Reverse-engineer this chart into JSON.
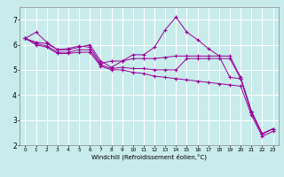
{
  "title": "",
  "xlabel": "Windchill (Refroidissement éolien,°C)",
  "ylabel": "",
  "background_color": "#c8ecec",
  "line_color": "#990099",
  "grid_color": "#aadddd",
  "xlim": [
    -0.5,
    23.5
  ],
  "ylim": [
    2,
    7.5
  ],
  "yticks": [
    2,
    3,
    4,
    5,
    6,
    7
  ],
  "xticks": [
    0,
    1,
    2,
    3,
    4,
    5,
    6,
    7,
    8,
    9,
    10,
    11,
    12,
    13,
    14,
    15,
    16,
    17,
    18,
    19,
    20,
    21,
    22,
    23
  ],
  "series": [
    {
      "x": [
        0,
        1,
        2,
        3,
        4,
        5,
        6,
        7,
        8,
        9,
        10,
        11,
        12,
        13,
        14,
        15,
        16,
        17,
        18,
        19,
        20,
        21,
        22,
        23
      ],
      "y": [
        6.25,
        6.5,
        6.1,
        5.8,
        5.8,
        5.9,
        6.0,
        5.35,
        5.1,
        5.35,
        5.6,
        5.6,
        5.9,
        6.6,
        7.1,
        6.5,
        6.2,
        5.85,
        5.55,
        5.55,
        4.7,
        3.35,
        2.45,
        2.65
      ]
    },
    {
      "x": [
        0,
        1,
        2,
        3,
        4,
        5,
        6,
        7,
        8,
        9,
        10,
        11,
        12,
        13,
        14,
        15,
        16,
        17,
        18,
        19,
        20,
        21,
        22,
        23
      ],
      "y": [
        6.25,
        6.1,
        6.05,
        5.8,
        5.85,
        5.95,
        5.9,
        5.25,
        5.35,
        5.35,
        5.45,
        5.45,
        5.45,
        5.5,
        5.55,
        5.55,
        5.55,
        5.55,
        5.55,
        4.7,
        4.65,
        3.35,
        2.45,
        2.65
      ]
    },
    {
      "x": [
        0,
        1,
        2,
        3,
        4,
        5,
        6,
        7,
        8,
        9,
        10,
        11,
        12,
        13,
        14,
        15,
        16,
        17,
        18,
        19,
        20,
        21,
        22,
        23
      ],
      "y": [
        6.25,
        6.05,
        5.95,
        5.7,
        5.7,
        5.8,
        5.8,
        5.2,
        5.05,
        5.1,
        5.05,
        5.05,
        5.0,
        5.0,
        5.0,
        5.45,
        5.45,
        5.45,
        5.45,
        5.45,
        4.65,
        3.3,
        2.45,
        2.65
      ]
    },
    {
      "x": [
        0,
        1,
        2,
        3,
        4,
        5,
        6,
        7,
        8,
        9,
        10,
        11,
        12,
        13,
        14,
        15,
        16,
        17,
        18,
        19,
        20,
        21,
        22,
        23
      ],
      "y": [
        6.25,
        6.0,
        5.9,
        5.65,
        5.65,
        5.7,
        5.7,
        5.15,
        5.0,
        5.0,
        4.9,
        4.85,
        4.75,
        4.7,
        4.65,
        4.6,
        4.55,
        4.5,
        4.45,
        4.4,
        4.35,
        3.2,
        2.35,
        2.55
      ]
    }
  ]
}
